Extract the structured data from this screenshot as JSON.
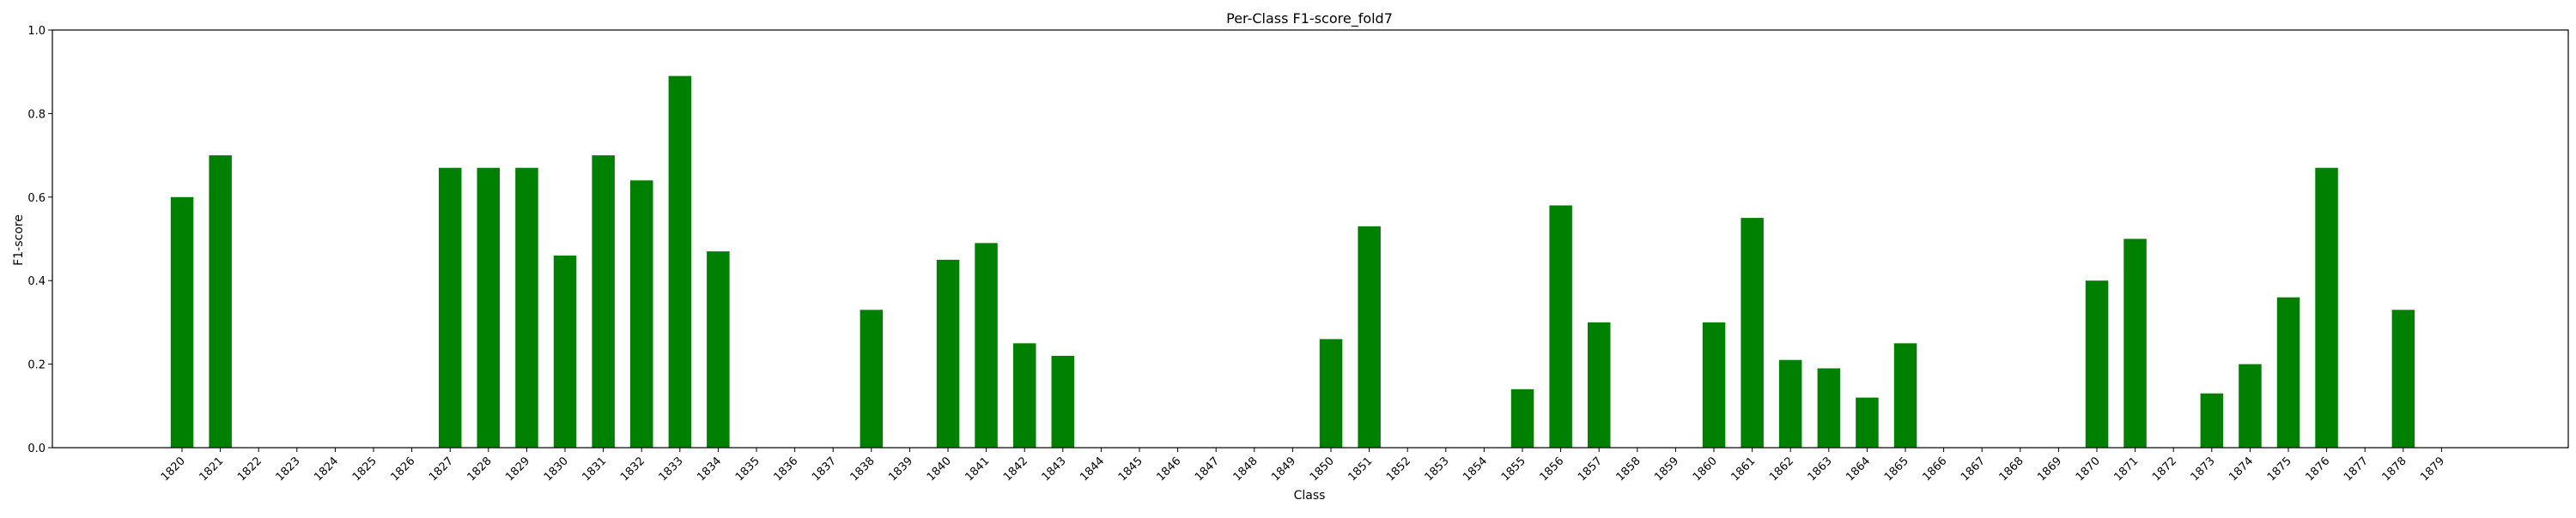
{
  "colors": {
    "bar": "#008000",
    "axis": "#000000",
    "background": "#ffffff"
  },
  "chart_data": {
    "type": "bar",
    "title": "Per-Class F1-score_fold7",
    "xlabel": "Class",
    "ylabel": "F1-score",
    "ylim": [
      0,
      1.0
    ],
    "yticks": [
      "0.0",
      "0.2",
      "0.4",
      "0.6",
      "0.8",
      "1.0"
    ],
    "grid": false,
    "categories": [
      "1820",
      "1821",
      "1822",
      "1823",
      "1824",
      "1825",
      "1826",
      "1827",
      "1828",
      "1829",
      "1830",
      "1831",
      "1832",
      "1833",
      "1834",
      "1835",
      "1836",
      "1837",
      "1838",
      "1839",
      "1840",
      "1841",
      "1842",
      "1843",
      "1844",
      "1845",
      "1846",
      "1847",
      "1848",
      "1849",
      "1850",
      "1851",
      "1852",
      "1853",
      "1854",
      "1855",
      "1856",
      "1857",
      "1858",
      "1859",
      "1860",
      "1861",
      "1862",
      "1863",
      "1864",
      "1865",
      "1866",
      "1867",
      "1868",
      "1869",
      "1870",
      "1871",
      "1872",
      "1873",
      "1874",
      "1875",
      "1876",
      "1877",
      "1878",
      "1879"
    ],
    "values": [
      0.6,
      0.7,
      0,
      0,
      0,
      0,
      0,
      0.67,
      0.67,
      0.67,
      0.46,
      0.7,
      0.64,
      0.89,
      0.47,
      0,
      0,
      0,
      0.33,
      0,
      0.45,
      0.49,
      0.25,
      0.22,
      0,
      0,
      0,
      0,
      0,
      0,
      0.26,
      0.53,
      0,
      0,
      0,
      0.14,
      0.58,
      0.3,
      0,
      0,
      0.3,
      0.55,
      0.21,
      0.19,
      0.12,
      0.25,
      0,
      0,
      0,
      0,
      0.4,
      0.5,
      0,
      0.13,
      0.2,
      0.36,
      0.67,
      0,
      0.33,
      0
    ]
  }
}
